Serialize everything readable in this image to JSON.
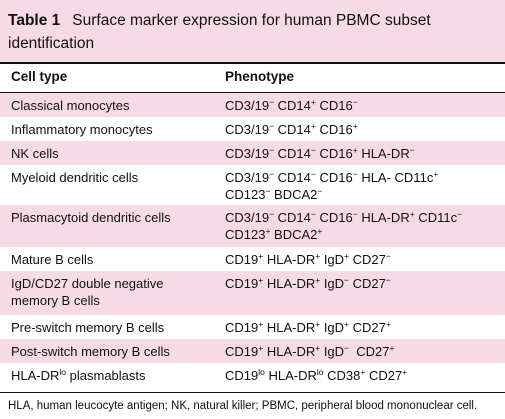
{
  "caption": {
    "table_number": "Table 1",
    "title": "Surface marker expression for human PBMC subset identification"
  },
  "header": {
    "cell_type": "Cell type",
    "phenotype": "Phenotype"
  },
  "rows": [
    {
      "cell_type": "Classical monocytes",
      "shaded": true,
      "phenotype": [
        [
          {
            "t": "CD3/19"
          },
          {
            "s": "−"
          },
          " CD14",
          {
            "s": "+"
          },
          " CD16",
          {
            "s": "−"
          }
        ]
      ]
    },
    {
      "cell_type": "Inflammatory monocytes",
      "shaded": false,
      "phenotype": [
        [
          {
            "t": "CD3/19"
          },
          {
            "s": "−"
          },
          " CD14",
          {
            "s": "+"
          },
          " CD16",
          {
            "s": "+"
          }
        ]
      ]
    },
    {
      "cell_type": "NK cells",
      "shaded": true,
      "phenotype": [
        [
          "CD3/19",
          {
            "s": "−"
          },
          " CD14",
          {
            "s": "−"
          },
          " CD16",
          {
            "s": "+"
          },
          " HLA-DR",
          {
            "s": "−"
          }
        ]
      ]
    },
    {
      "cell_type": "Myeloid dendritic cells",
      "shaded": false,
      "phenotype": [
        [
          "CD3/19",
          {
            "s": "−"
          },
          " CD14",
          {
            "s": "−"
          },
          " CD16",
          {
            "s": "−"
          },
          " HLA- CD11c",
          {
            "s": "+"
          }
        ],
        [
          "CD123",
          {
            "s": "−"
          },
          " BDCA2",
          {
            "s": "−"
          }
        ]
      ]
    },
    {
      "cell_type": "Plasmacytoid dendritic cells",
      "shaded": true,
      "phenotype": [
        [
          "CD3/19",
          {
            "s": "−"
          },
          " CD14",
          {
            "s": "−"
          },
          " CD16",
          {
            "s": "−"
          },
          " HLA-DR",
          {
            "s": "+"
          },
          " CD11c",
          {
            "s": "−"
          }
        ],
        [
          "CD123",
          {
            "s": "+"
          },
          " BDCA2",
          {
            "s": "+"
          }
        ]
      ]
    },
    {
      "cell_type": "Mature B cells",
      "shaded": false,
      "phenotype": [
        [
          "CD19",
          {
            "s": "+"
          },
          " HLA-DR",
          {
            "s": "+"
          },
          " IgD",
          {
            "s": "+"
          },
          " CD27",
          {
            "s": "−"
          }
        ]
      ]
    },
    {
      "cell_type": "IgD/CD27 double negative memory B cells",
      "shaded": true,
      "phenotype": [
        [
          "CD19",
          {
            "s": "+"
          },
          " HLA-DR",
          {
            "s": "+"
          },
          " IgD",
          {
            "s": "−"
          },
          " CD27",
          {
            "s": "−"
          }
        ]
      ]
    },
    {
      "cell_type": "Pre-switch memory B cells",
      "shaded": false,
      "phenotype": [
        [
          "CD19",
          {
            "s": "+"
          },
          " HLA-DR",
          {
            "s": "+"
          },
          " IgD",
          {
            "s": "+"
          },
          " CD27",
          {
            "s": "+"
          }
        ]
      ]
    },
    {
      "cell_type": "Post-switch memory B cells",
      "shaded": true,
      "phenotype": [
        [
          "CD19",
          {
            "s": "+"
          },
          " HLA-DR",
          {
            "s": "+"
          },
          " IgD",
          {
            "s": "−"
          },
          "  CD27",
          {
            "s": "+"
          }
        ]
      ]
    },
    {
      "cell_type": "HLA-DRlo plasmablasts",
      "cell_type_parts": [
        "HLA-DR",
        {
          "s": "lo"
        },
        " plasmablasts"
      ],
      "shaded": false,
      "phenotype": [
        [
          "CD19",
          {
            "s": "lo"
          },
          " HLA-DR",
          {
            "s": "lo"
          },
          " CD38",
          {
            "s": "+"
          },
          " CD27",
          {
            "s": "+"
          }
        ]
      ]
    }
  ],
  "footnote": "HLA, human leucocyte antigen; NK, natural killer; PBMC, peripheral blood mononuclear cell."
}
